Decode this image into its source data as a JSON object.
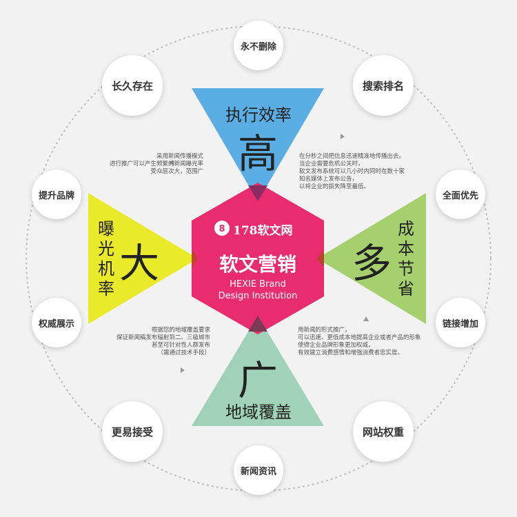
{
  "center": {
    "logo": "178软文网",
    "title": "软文营销",
    "subtitle_line1": "HEXIE Brand",
    "subtitle_line2": "Design Institution"
  },
  "triangles": {
    "top": {
      "big": "高",
      "label": "执行效率",
      "color": "#5aaee4"
    },
    "left": {
      "big": "大",
      "label": "曝光机率",
      "color": "#e9ea2a"
    },
    "right": {
      "big": "多",
      "label": "成本节省",
      "color": "#a6cf6e"
    },
    "bottom": {
      "big": "广",
      "label": "地域覆盖",
      "color": "#9fd2b9"
    }
  },
  "hexagon_color": "#e82c6d",
  "nodes": [
    "永不删除",
    "搜索排名",
    "全面优先",
    "链接增加",
    "网站权重",
    "新闻资讯",
    "更易接受",
    "权威展示",
    "提升品牌",
    "长久存在"
  ],
  "descriptions": {
    "top_left": "采用新闻传播模式\n进行推广可以产生频繁的新闻曝光率\n受众层次大，范围广",
    "top_right": "在分秒之间把信息迅速精准地传播出去。\n当企业需要危机公关时，\n软文发布系统可以几小时内同时在数十家\n知名媒体上发布公告，\n以将企业的损失降至最低。",
    "bottom_left": "根据您的地域覆盖要求\n保证新闻稿发布辐射到二、三级城市\n甚至可针对性人群发布\n（需通过技术手段）",
    "bottom_right": "用新闻的形式推广，\n可以迅速、更低成本地提高企业或者产品的形象\n使得企业品牌形象更加权威，\n有效建立消费感情和增强消费者忠实度。"
  }
}
